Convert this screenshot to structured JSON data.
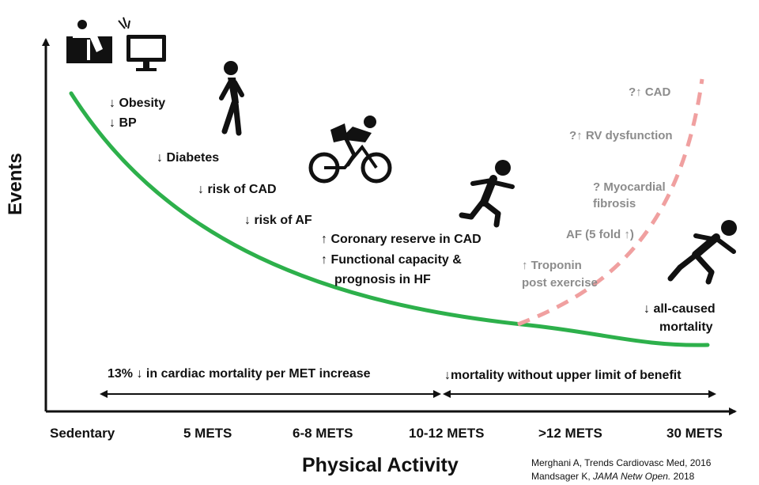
{
  "axes": {
    "y_label": "Events",
    "x_label": "Physical Activity",
    "x_ticks": [
      "Sedentary",
      "5 METS",
      "6-8 METS",
      "10-12 METS",
      ">12 METS",
      "30 METS"
    ]
  },
  "benefits": [
    "↓ Obesity",
    "↓ BP",
    "↓ Diabetes",
    "↓ risk of CAD",
    "↓ risk of AF",
    "↑ Coronary reserve in CAD",
    "↑ Functional capacity &",
    "prognosis in HF"
  ],
  "risks": [
    "?↑ CAD",
    "?↑ RV dysfunction",
    "? Myocardial",
    "fibrosis",
    "AF (5 fold ↑)",
    "↑ Troponin",
    "post exercise"
  ],
  "mortality_note": [
    "↓ all-caused",
    "mortality"
  ],
  "ranges": {
    "left": "13% ↓ in cardiac mortality per MET increase",
    "right": "↓mortality without upper limit of benefit"
  },
  "references": {
    "line1": "Merghani A, Trends Cardiovasc Med, 2016",
    "line2_author": "Mandsager K, ",
    "line2_journal": "JAMA Netw Open.",
    "line2_year": " 2018"
  },
  "icons": [
    "couch-tv-icon",
    "walking-person-icon",
    "cyclist-icon",
    "runner-icon",
    "sprinter-icon"
  ],
  "colors": {
    "benefit_curve": "#2db04b",
    "risk_curve": "#f0a0a0",
    "risk_text": "#8c8c8c",
    "text": "#111111"
  }
}
